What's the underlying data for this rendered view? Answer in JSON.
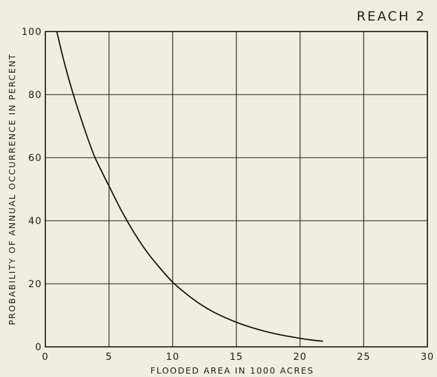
{
  "chart_data": {
    "type": "line",
    "title": "REACH 2",
    "xlabel": "FLOODED AREA IN 1000 ACRES",
    "ylabel": "PROBABILITY OF ANNUAL OCCURRENCE IN PERCENT",
    "xlim": [
      0,
      30
    ],
    "ylim": [
      0,
      100
    ],
    "xticks": [
      "0",
      "5",
      "10",
      "15",
      "20",
      "25",
      "30"
    ],
    "yticks": [
      "0",
      "20",
      "40",
      "60",
      "80",
      "100"
    ],
    "grid": true,
    "series": [
      {
        "x": [
          0.9,
          1.5,
          2.2,
          3.0,
          3.8,
          4.5,
          5.0,
          6.0,
          7.0,
          8.0,
          9.0,
          10.0,
          11.0,
          12.0,
          13.0,
          14.0,
          15.0,
          16.0,
          17.0,
          18.0,
          19.0,
          20.0,
          21.0,
          21.8
        ],
        "y": [
          100,
          90,
          80,
          70,
          61,
          55,
          51,
          43,
          36,
          30,
          25,
          20.5,
          17,
          14,
          11.5,
          9.5,
          7.8,
          6.4,
          5.2,
          4.2,
          3.4,
          2.7,
          2.1,
          1.8
        ]
      }
    ]
  }
}
